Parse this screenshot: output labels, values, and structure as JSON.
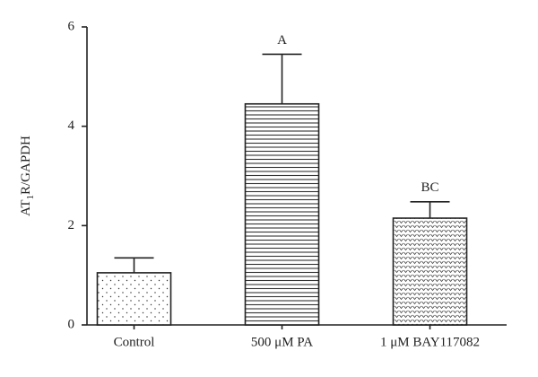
{
  "chart_data": {
    "type": "bar",
    "ylabel": {
      "before": "AT",
      "subscript": "1",
      "after": "R/GAPDH"
    },
    "categories": [
      "Control",
      "500 μM PA",
      "1 μM BAY117082"
    ],
    "values": [
      1.05,
      4.45,
      2.15
    ],
    "errors": [
      0.3,
      1.0,
      0.33
    ],
    "annotations": [
      null,
      "A",
      "BC"
    ],
    "patterns": [
      "dots",
      "hlines",
      "chevrons"
    ],
    "color": "#222222",
    "ylim": [
      0,
      6
    ],
    "yticks": [
      0,
      2,
      4,
      6
    ],
    "grid": false
  }
}
